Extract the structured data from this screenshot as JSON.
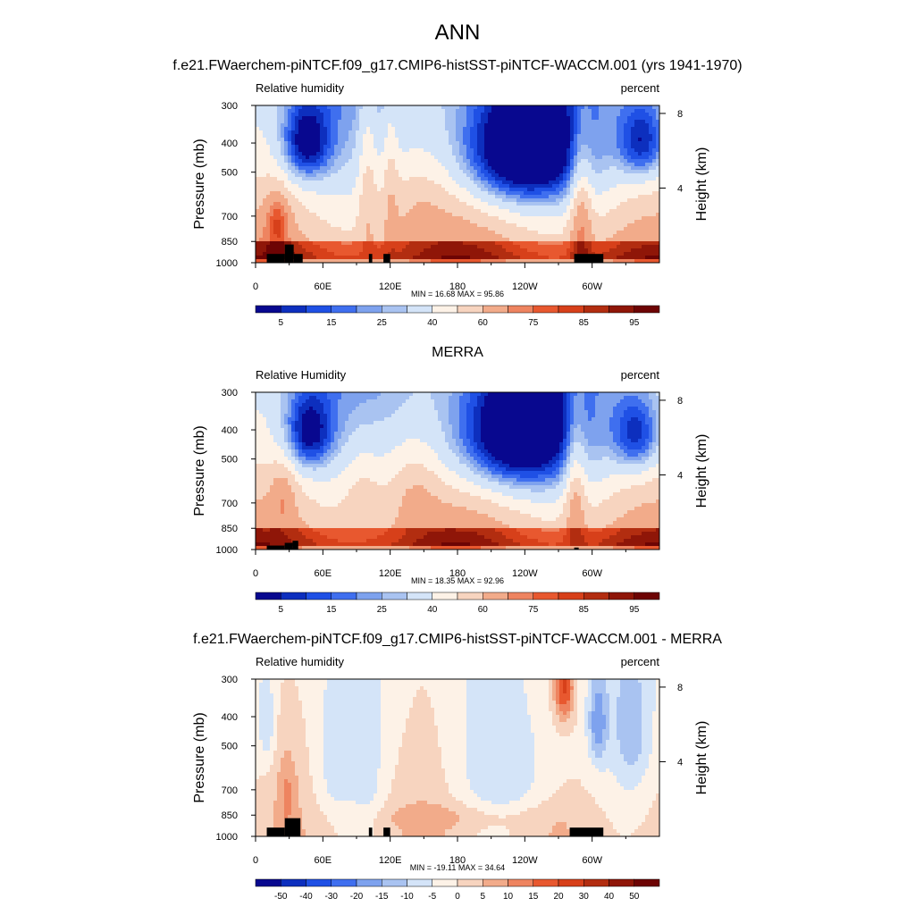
{
  "page": {
    "title": "ANN"
  },
  "colors": {
    "abs_scale": [
      "#08088f",
      "#0d2fbe",
      "#1f50e5",
      "#3f6fef",
      "#7ea2ee",
      "#a9c3f1",
      "#d4e4f8",
      "#fdf2e7",
      "#f7d4bf",
      "#f2ab8a",
      "#ee8460",
      "#e8582f",
      "#d7401a",
      "#b22d10",
      "#8f1608",
      "#6d0404"
    ],
    "diff_scale": [
      "#08088f",
      "#0d2fbe",
      "#1f50e5",
      "#3f6fef",
      "#7ea2ee",
      "#a9c3f1",
      "#d4e4f8",
      "#fdf2e7",
      "#f7d4bf",
      "#f2ab8a",
      "#ee8460",
      "#e8582f",
      "#d7401a",
      "#b22d10",
      "#8f1608",
      "#6d0404"
    ],
    "topo": "#000000"
  },
  "chart_data": [
    {
      "type": "heatmap",
      "title": "f.e21.FWaerchem-piNTCF.f09_g17.CMIP6-histSST-piNTCF-WACCM.001 (yrs 1941-1970)",
      "left_label": "Relative humidity",
      "right_label": "percent",
      "ylabel": "Pressure (mb)",
      "ylabel_right": "Height (km)",
      "x_ticks": [
        "0",
        "60E",
        "120E",
        "180",
        "120W",
        "60W"
      ],
      "x_tick_values": [
        0,
        60,
        120,
        180,
        240,
        300
      ],
      "xlim": [
        0,
        360
      ],
      "y_ticks": [
        "300",
        "400",
        "500",
        "700",
        "850",
        "1000"
      ],
      "y_tick_values": [
        300,
        400,
        500,
        700,
        850,
        1000
      ],
      "ylim": [
        300,
        1000
      ],
      "y_right_ticks": [
        "8",
        "4"
      ],
      "y_right_values": [
        8,
        4
      ],
      "stats": "MIN =  16.68  MAX =  95.86",
      "colorbar_labels": [
        "5",
        "15",
        "25",
        "40",
        "60",
        "75",
        "85",
        "95"
      ],
      "colorbar_label_positions": [
        1,
        3,
        5,
        7,
        9,
        11,
        13,
        15
      ],
      "levels": [
        0,
        5,
        10,
        15,
        20,
        25,
        30,
        40,
        50,
        60,
        70,
        75,
        80,
        85,
        90,
        95,
        100
      ],
      "features": [
        {
          "lon": 20,
          "p": 720,
          "amp": 20,
          "sx": 8,
          "sy": 120
        },
        {
          "lon": 45,
          "p": 400,
          "amp": -38,
          "sx": 16,
          "sy": 90
        },
        {
          "lon": 100,
          "p": 500,
          "amp": 16,
          "sx": 6,
          "sy": 260
        },
        {
          "lon": 120,
          "p": 480,
          "amp": 12,
          "sx": 5,
          "sy": 260
        },
        {
          "lon": 140,
          "p": 600,
          "amp": 10,
          "sx": 25,
          "sy": 150
        },
        {
          "lon": 235,
          "p": 430,
          "amp": -52,
          "sx": 40,
          "sy": 140
        },
        {
          "lon": 290,
          "p": 650,
          "amp": 24,
          "sx": 7,
          "sy": 240
        },
        {
          "lon": 345,
          "p": 400,
          "amp": -36,
          "sx": 16,
          "sy": 90
        }
      ],
      "topography": [
        [
          10,
          26,
          935
        ],
        [
          26,
          34,
          870
        ],
        [
          34,
          42,
          935
        ],
        [
          101,
          104,
          935
        ],
        [
          114,
          120,
          935
        ],
        [
          284,
          310,
          935
        ]
      ]
    },
    {
      "type": "heatmap",
      "title": "MERRA",
      "left_label": "Relative Humidity",
      "right_label": "percent",
      "ylabel": "Pressure (mb)",
      "ylabel_right": "Height (km)",
      "x_ticks": [
        "0",
        "60E",
        "120E",
        "180",
        "120W",
        "60W"
      ],
      "x_tick_values": [
        0,
        60,
        120,
        180,
        240,
        300
      ],
      "xlim": [
        0,
        360
      ],
      "y_ticks": [
        "300",
        "400",
        "500",
        "700",
        "850",
        "1000"
      ],
      "y_tick_values": [
        300,
        400,
        500,
        700,
        850,
        1000
      ],
      "ylim": [
        300,
        1000
      ],
      "y_right_ticks": [
        "8",
        "4"
      ],
      "y_right_values": [
        8,
        4
      ],
      "stats": "MIN =  18.35  MAX =  92.96",
      "colorbar_labels": [
        "5",
        "15",
        "25",
        "40",
        "60",
        "75",
        "85",
        "95"
      ],
      "colorbar_label_positions": [
        1,
        3,
        5,
        7,
        9,
        11,
        13,
        15
      ],
      "levels": [
        0,
        5,
        10,
        15,
        20,
        25,
        30,
        40,
        50,
        60,
        70,
        75,
        80,
        85,
        90,
        95,
        100
      ],
      "features": [
        {
          "lon": 25,
          "p": 640,
          "amp": 14,
          "sx": 8,
          "sy": 120
        },
        {
          "lon": 47,
          "p": 410,
          "amp": -36,
          "sx": 16,
          "sy": 90
        },
        {
          "lon": 95,
          "p": 620,
          "amp": 12,
          "sx": 14,
          "sy": 150
        },
        {
          "lon": 140,
          "p": 620,
          "amp": 12,
          "sx": 16,
          "sy": 150
        },
        {
          "lon": 230,
          "p": 420,
          "amp": -50,
          "sx": 40,
          "sy": 140
        },
        {
          "lon": 285,
          "p": 600,
          "amp": 22,
          "sx": 7,
          "sy": 240
        },
        {
          "lon": 340,
          "p": 420,
          "amp": -34,
          "sx": 16,
          "sy": 90
        }
      ],
      "topography": [
        [
          10,
          26,
          970
        ],
        [
          26,
          33,
          950
        ],
        [
          33,
          38,
          935
        ],
        [
          284,
          288,
          985
        ]
      ]
    },
    {
      "type": "heatmap",
      "title": "f.e21.FWaerchem-piNTCF.f09_g17.CMIP6-histSST-piNTCF-WACCM.001 - MERRA",
      "left_label": "Relative humidity",
      "right_label": "percent",
      "ylabel": "Pressure (mb)",
      "ylabel_right": "Height (km)",
      "x_ticks": [
        "0",
        "60E",
        "120E",
        "180",
        "120W",
        "60W"
      ],
      "x_tick_values": [
        0,
        60,
        120,
        180,
        240,
        300
      ],
      "xlim": [
        0,
        360
      ],
      "y_ticks": [
        "300",
        "400",
        "500",
        "700",
        "850",
        "1000"
      ],
      "y_tick_values": [
        300,
        400,
        500,
        700,
        850,
        1000
      ],
      "ylim": [
        300,
        1000
      ],
      "y_right_ticks": [
        "8",
        "4"
      ],
      "y_right_values": [
        8,
        4
      ],
      "stats": "MIN = -19.11  MAX =  34.64",
      "colorbar_labels": [
        "-50",
        "-40",
        "-30",
        "-20",
        "-15",
        "-10",
        "-5",
        "0",
        "5",
        "10",
        "15",
        "20",
        "30",
        "40",
        "50"
      ],
      "colorbar_label_positions": [
        1,
        2,
        3,
        4,
        5,
        6,
        7,
        8,
        9,
        10,
        11,
        12,
        13,
        14,
        15
      ],
      "levels": [
        -60,
        -50,
        -40,
        -30,
        -20,
        -15,
        -10,
        -5,
        0,
        5,
        10,
        15,
        20,
        30,
        40,
        50,
        60
      ],
      "features": [
        {
          "lon": 10,
          "p": 420,
          "amp": -9,
          "sx": 5,
          "sy": 100
        },
        {
          "lon": 28,
          "p": 720,
          "amp": 8,
          "sx": 6,
          "sy": 150
        },
        {
          "lon": 70,
          "p": 600,
          "amp": -6,
          "sx": 12,
          "sy": 200
        },
        {
          "lon": 100,
          "p": 650,
          "amp": -5,
          "sx": 10,
          "sy": 200
        },
        {
          "lon": 230,
          "p": 620,
          "amp": -7,
          "sx": 35,
          "sy": 200
        },
        {
          "lon": 275,
          "p": 320,
          "amp": 22,
          "sx": 6,
          "sy": 60
        },
        {
          "lon": 305,
          "p": 420,
          "amp": -16,
          "sx": 6,
          "sy": 100
        },
        {
          "lon": 335,
          "p": 450,
          "amp": -9,
          "sx": 12,
          "sy": 150
        },
        {
          "lon": 180,
          "p": 860,
          "amp": 5,
          "sx": 60,
          "sy": 60
        }
      ],
      "topography": [
        [
          10,
          26,
          935
        ],
        [
          26,
          40,
          870
        ],
        [
          101,
          104,
          935
        ],
        [
          114,
          120,
          935
        ],
        [
          280,
          310,
          935
        ]
      ]
    }
  ]
}
